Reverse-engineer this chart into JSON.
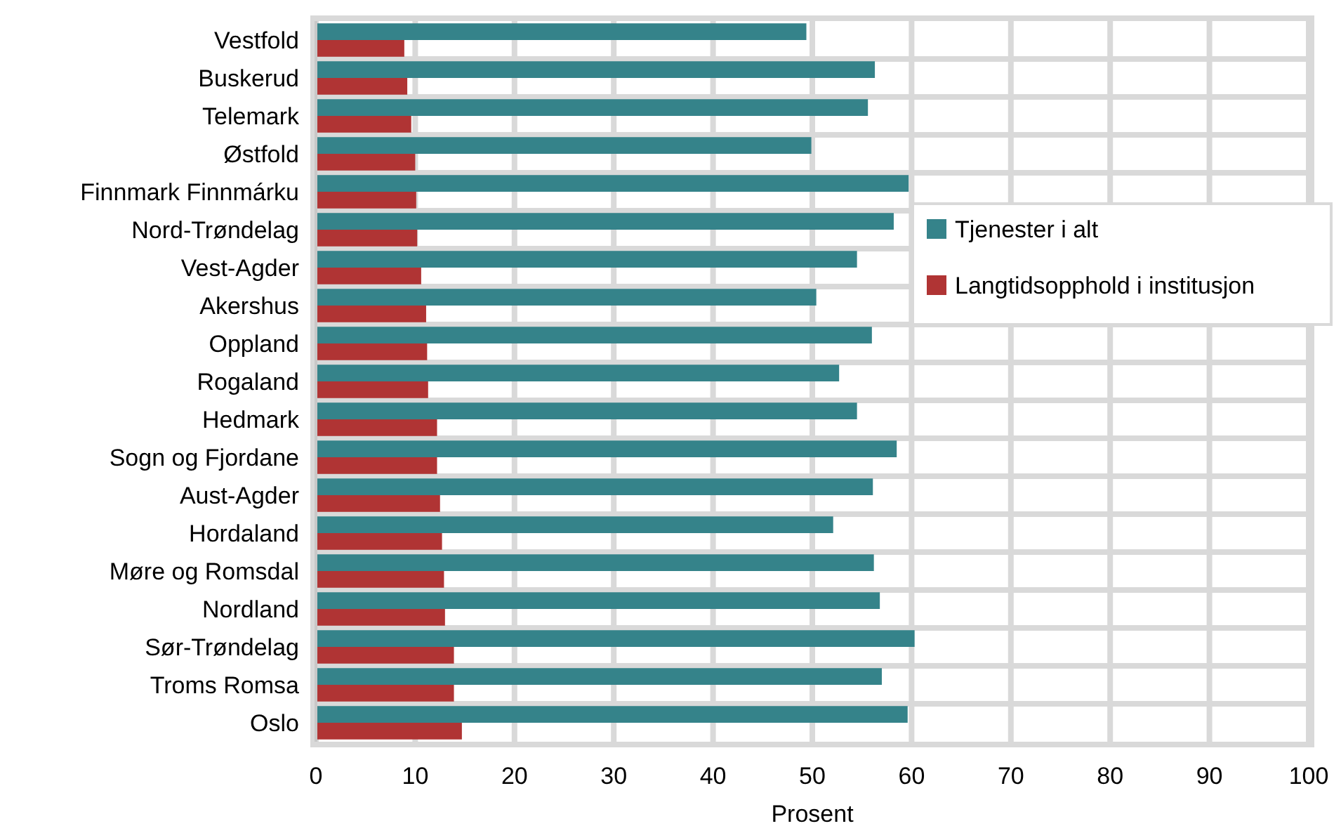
{
  "chart_data": {
    "type": "bar",
    "orientation": "horizontal",
    "xlabel": "Prosent",
    "categories": [
      "Vestfold",
      "Buskerud",
      "Telemark",
      "Østfold",
      "Finnmark Finnmárku",
      "Nord-Trøndelag",
      "Vest-Agder",
      "Akershus",
      "Oppland",
      "Rogaland",
      "Hedmark",
      "Sogn og Fjordane",
      "Aust-Agder",
      "Hordaland",
      "Møre og Romsdal",
      "Nordland",
      "Sør-Trøndelag",
      "Troms Romsa",
      "Oslo"
    ],
    "series": [
      {
        "name": "Tjenester i alt",
        "color": "#35838a",
        "values": [
          49.4,
          56.3,
          55.6,
          49.9,
          59.7,
          58.2,
          54.5,
          50.4,
          56.0,
          52.7,
          54.5,
          58.5,
          56.1,
          52.1,
          56.2,
          56.8,
          60.3,
          57.0,
          59.6
        ]
      },
      {
        "name": "Langtidsopphold i institusjon",
        "color": "#b03434",
        "values": [
          8.9,
          9.2,
          9.6,
          10.0,
          10.1,
          10.2,
          10.6,
          11.1,
          11.2,
          11.3,
          12.2,
          12.2,
          12.5,
          12.7,
          12.9,
          13.0,
          13.9,
          13.9,
          14.7
        ]
      }
    ],
    "xlim": [
      0,
      100
    ],
    "xticks": [
      0,
      10,
      20,
      30,
      40,
      50,
      60,
      70,
      80,
      90,
      100
    ],
    "grid": "x",
    "legend": "right"
  }
}
